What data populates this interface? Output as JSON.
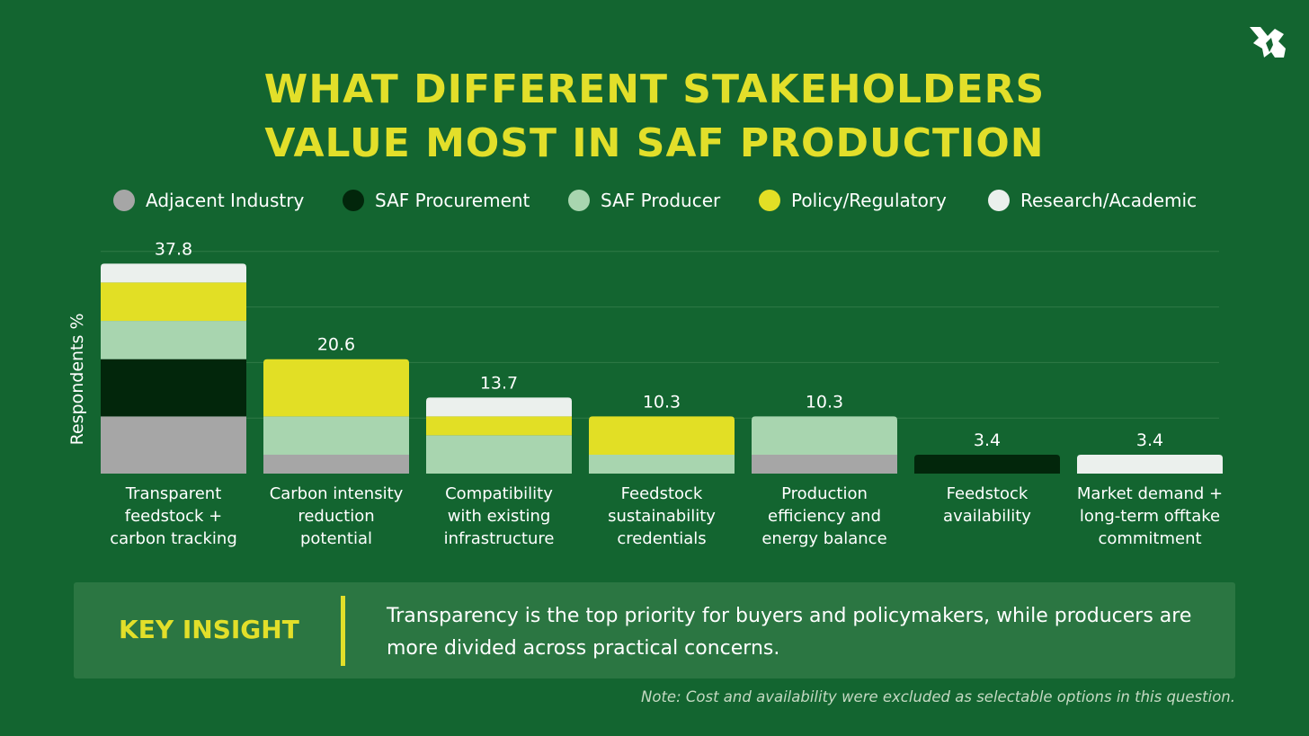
{
  "title": {
    "line1": "WHAT DIFFERENT STAKEHOLDERS",
    "line2": "VALUE MOST IN SAF PRODUCTION"
  },
  "logo": {
    "icon": "airplane-leaf-icon"
  },
  "legend": [
    {
      "label": "Adjacent Industry",
      "color": "#a6a6a6"
    },
    {
      "label": "SAF Procurement",
      "color": "#02260b"
    },
    {
      "label": "SAF Producer",
      "color": "#a8d5af"
    },
    {
      "label": "Policy/Regulatory",
      "color": "#e2df25"
    },
    {
      "label": "Research/Academic",
      "color": "#ebf0ed"
    }
  ],
  "chart_data": {
    "type": "bar",
    "stacked": true,
    "ylabel": "Respondents %",
    "ylim": [
      0,
      40
    ],
    "grid": true,
    "legend_position": "top",
    "categories": [
      "Transparent feedstock + carbon tracking",
      "Carbon intensity reduction potential",
      "Compatibility with existing infrastructure",
      "Feedstock sustainability credentials",
      "Production efficiency and energy balance",
      "Feedstock availability",
      "Market demand + long-term offtake commitment"
    ],
    "category_lines": [
      [
        "Transparent",
        "feedstock +",
        "carbon tracking"
      ],
      [
        "Carbon intensity",
        "reduction",
        "potential"
      ],
      [
        "Compatibility",
        "with existing",
        "infrastructure"
      ],
      [
        "Feedstock",
        "sustainability",
        "credentials"
      ],
      [
        "Production",
        "efficiency and",
        "energy balance"
      ],
      [
        "Feedstock",
        "availability"
      ],
      [
        "Market demand +",
        "long-term offtake",
        "commitment"
      ]
    ],
    "totals": [
      "37.8",
      "20.6",
      "13.7",
      "10.3",
      "10.3",
      "3.4",
      "3.4"
    ],
    "series": [
      {
        "name": "Adjacent Industry",
        "values": [
          10.3,
          3.4,
          0,
          0,
          3.4,
          0,
          0
        ]
      },
      {
        "name": "SAF Procurement",
        "values": [
          10.3,
          0,
          0,
          0,
          0,
          3.4,
          0
        ]
      },
      {
        "name": "SAF Producer",
        "values": [
          6.9,
          6.9,
          6.9,
          3.4,
          6.9,
          0,
          0
        ]
      },
      {
        "name": "Policy/Regulatory",
        "values": [
          6.9,
          10.3,
          3.4,
          6.9,
          0,
          0,
          0
        ]
      },
      {
        "name": "Research/Academic",
        "values": [
          3.4,
          0,
          3.4,
          0,
          0,
          0,
          3.4
        ]
      }
    ]
  },
  "insight": {
    "heading": "KEY INSIGHT",
    "text": "Transparency is the top priority for buyers and policymakers, while producers are more divided across practical concerns."
  },
  "note": "Note: Cost and availability were excluded as selectable options in this question."
}
